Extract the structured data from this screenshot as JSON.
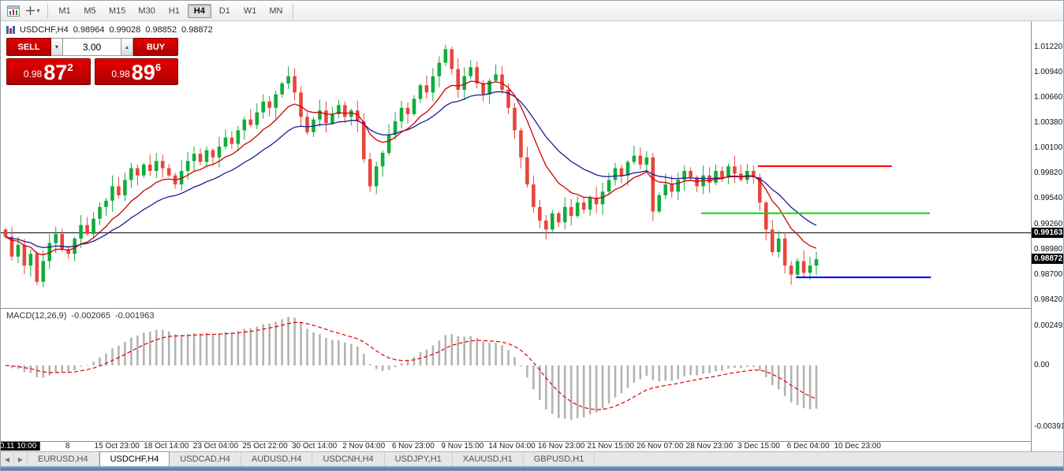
{
  "toolbar": {
    "timeframes": [
      "M1",
      "M5",
      "M15",
      "M30",
      "H1",
      "H4",
      "D1",
      "W1",
      "MN"
    ],
    "active_timeframe": "H4"
  },
  "icons": {
    "dropdown_caret": "▾",
    "spinner_up": "▴",
    "tab_prev": "◀",
    "tab_next": "▶"
  },
  "chart": {
    "symbol": "USDCHF,H4",
    "open": "0.98964",
    "high": "0.99028",
    "low": "0.98852",
    "close": "0.98872"
  },
  "trade_panel": {
    "sell_label": "SELL",
    "buy_label": "BUY",
    "volume": "3.00",
    "sell_price": {
      "prefix": "0.98",
      "big": "87",
      "sup": "2"
    },
    "buy_price": {
      "prefix": "0.98",
      "big": "89",
      "sup": "6"
    }
  },
  "indicator": {
    "name": "MACD(12,26,9)",
    "value_main": "-0.002065",
    "value_signal": "-0.001963"
  },
  "price_axis": {
    "ticks": [
      "1.01220",
      "1.00940",
      "1.00660",
      "1.00380",
      "1.00100",
      "0.99820",
      "0.99540",
      "0.99260",
      "0.98980",
      "0.98700",
      "0.98420"
    ],
    "tags": [
      "0.99163",
      "0.98872"
    ]
  },
  "macd_axis": {
    "ticks": [
      "0.002492",
      "0.00",
      "-0.003913"
    ]
  },
  "time_axis": {
    "labels": [
      "0.11 10:00",
      "8",
      "15 Oct 23:00",
      "18 Oct 14:00",
      "23 Oct 04:00",
      "25 Oct 22:00",
      "30 Oct 14:00",
      "2 Nov 04:00",
      "6 Nov 23:00",
      "9 Nov 15:00",
      "14 Nov 04:00",
      "16 Nov 23:00",
      "21 Nov 15:00",
      "26 Nov 07:00",
      "28 Nov 23:00",
      "3 Dec 15:00",
      "6 Dec 04:00",
      "10 Dec 23:00"
    ],
    "highlight_index": 0
  },
  "tabs": {
    "items": [
      "EURUSD,H4",
      "USDCHF,H4",
      "USDCAD,H4",
      "AUDUSD,H4",
      "USDCNH,H4",
      "USDJPY,H1",
      "XAUUSD,H1",
      "GBPUSD,H1"
    ],
    "active": "USDCHF,H4"
  },
  "chart_data": {
    "type": "candlestick",
    "symbol": "USDCHF",
    "timeframe": "H4",
    "first_open": 0.992,
    "closes": [
      0.9912,
      0.989,
      0.9903,
      0.988,
      0.9893,
      0.9862,
      0.9885,
      0.9905,
      0.9915,
      0.9898,
      0.9893,
      0.991,
      0.9925,
      0.9915,
      0.9932,
      0.9945,
      0.9952,
      0.9968,
      0.9958,
      0.9975,
      0.9988,
      0.998,
      0.9992,
      0.9985,
      0.9996,
      0.9988,
      0.998,
      0.997,
      0.9985,
      0.9996,
      1.0004,
      0.9995,
      1.0008,
      1.0,
      1.0012,
      1.0022,
      1.0015,
      1.003,
      1.0042,
      1.0036,
      1.005,
      1.0062,
      1.0055,
      1.007,
      1.0082,
      1.009,
      1.0072,
      1.0045,
      1.0028,
      1.0042,
      1.0052,
      1.0038,
      1.0048,
      1.0058,
      1.0045,
      1.0052,
      1.004,
      0.9998,
      0.9968,
      0.999,
      1.0005,
      1.0025,
      1.004,
      1.0055,
      1.0048,
      1.0065,
      1.008,
      1.0072,
      1.009,
      1.0105,
      1.012,
      1.0098,
      1.0075,
      1.009,
      1.01,
      1.0082,
      1.007,
      1.0085,
      1.0092,
      1.0075,
      1.0055,
      1.003,
      1.0,
      0.997,
      0.9945,
      0.993,
      0.992,
      0.9938,
      0.9928,
      0.9945,
      0.9935,
      0.995,
      0.9942,
      0.9955,
      0.9948,
      0.9962,
      0.9975,
      0.9988,
      0.998,
      0.9995,
      1.0002,
      0.9992,
      1.0,
      0.994,
      0.9958,
      0.997,
      0.9962,
      0.9975,
      0.9985,
      0.9978,
      0.9968,
      0.998,
      0.9972,
      0.9985,
      0.9978,
      0.999,
      0.9982,
      0.9975,
      0.9985,
      0.9978,
      0.995,
      0.992,
      0.9895,
      0.991,
      0.988,
      0.987,
      0.9885,
      0.9872,
      0.988,
      0.98872
    ],
    "ylim": [
      0.9833,
      1.0151
    ],
    "colors": {
      "up": "#10ac3c",
      "down": "#e8463c",
      "ma_fast": "#cc0000",
      "ma_slow": "#1c1c96",
      "macd_bar": "#b3b3b3",
      "macd_signal": "#e00000"
    },
    "ma_periods": {
      "fast": 10,
      "slow": 21
    },
    "hlines": [
      {
        "price": 0.99163,
        "color": "#000000",
        "from": 0.0,
        "to": 1.0,
        "width": 1,
        "layer": "back"
      },
      {
        "price": 0.99903,
        "color": "#ff0000",
        "from": 0.735,
        "to": 0.865,
        "width": 2,
        "layer": "front"
      },
      {
        "price": 0.9938,
        "color": "#00e000",
        "from": 0.68,
        "to": 0.902,
        "width": 2,
        "layer": "front"
      },
      {
        "price": 0.9867,
        "color": "#0000ff",
        "from": 0.772,
        "to": 0.903,
        "width": 2,
        "layer": "front"
      }
    ],
    "macd": {
      "fast": 12,
      "slow": 26,
      "signal": 9,
      "ylim": [
        -0.0048,
        0.0036
      ]
    }
  }
}
